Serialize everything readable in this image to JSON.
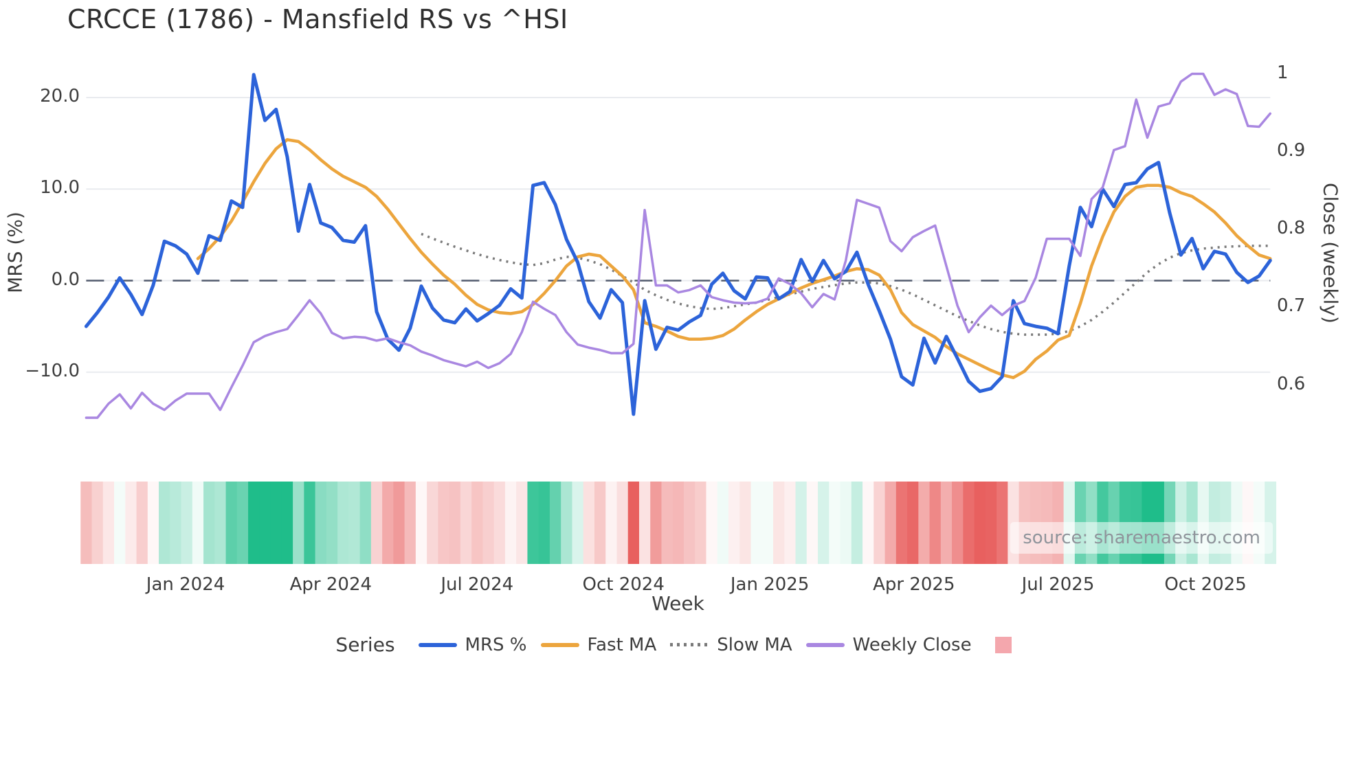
{
  "title": "CRCCE (1786) - Mansfield RS vs ^HSI",
  "source_note": "source: sharemaestro.com",
  "colors": {
    "mrs": "#2c63d9",
    "fast_ma": "#eca53d",
    "slow_ma": "#7a7a7a",
    "weekly_close": "#a987e1",
    "zero_line": "#525b6e",
    "gridline": "#e9ebef",
    "heat_positive": "#1fbd8a",
    "heat_negative": "#e8605f",
    "legend_square": "#f4a7ad",
    "tick_text": "#3d3d3d",
    "title_text": "#2e2e2e",
    "source_text": "#8f949b"
  },
  "axes": {
    "left": {
      "title": "MRS (%)",
      "ticks": [
        {
          "label": "20.0",
          "value": 20
        },
        {
          "label": "10.0",
          "value": 10
        },
        {
          "label": "0.0",
          "value": 0
        },
        {
          "label": "−10.0",
          "value": -10
        }
      ]
    },
    "right": {
      "title": "Close (weekly)",
      "ticks": [
        {
          "label": "1",
          "value": 1.0
        },
        {
          "label": "0.9",
          "value": 0.9
        },
        {
          "label": "0.8",
          "value": 0.8
        },
        {
          "label": "0.7",
          "value": 0.7
        },
        {
          "label": "0.6",
          "value": 0.6
        }
      ]
    },
    "x": {
      "title": "Week",
      "ticks": [
        {
          "label": "Jan 2024",
          "week": 8.9
        },
        {
          "label": "Apr 2024",
          "week": 21.9
        },
        {
          "label": "Jul 2024",
          "week": 35.0
        },
        {
          "label": "Oct 2024",
          "week": 48.1
        },
        {
          "label": "Jan 2025",
          "week": 61.2
        },
        {
          "label": "Apr 2025",
          "week": 74.1
        },
        {
          "label": "Jul 2025",
          "week": 87.0
        },
        {
          "label": "Oct 2025",
          "week": 100.2
        }
      ]
    }
  },
  "legend": {
    "title": "Series",
    "items": [
      {
        "label": "MRS %",
        "swatch": "line",
        "color": "#2c63d9"
      },
      {
        "label": "Fast MA",
        "swatch": "line",
        "color": "#eca53d"
      },
      {
        "label": "Slow MA",
        "swatch": "dotted",
        "color": "#7a7a7a"
      },
      {
        "label": "Weekly Close",
        "swatch": "line",
        "color": "#a987e1"
      },
      {
        "label": "",
        "swatch": "square",
        "color": "#f4a7ad"
      }
    ]
  },
  "chart_data": {
    "type": "line",
    "x_unit": "weeks",
    "n_weeks": 107,
    "x_range_label": [
      "Nov 2023",
      "Nov 2025"
    ],
    "left_axis_range": [
      -15.5,
      23.5
    ],
    "right_axis_range": [
      0.55,
      1.0
    ],
    "grid": true,
    "legend_position": "bottom",
    "series": [
      {
        "name": "MRS %",
        "axis": "left",
        "style": "solid",
        "color": "#2c63d9",
        "width": 5,
        "values": [
          -5.0,
          -3.5,
          -1.8,
          0.3,
          -1.5,
          -3.7,
          -0.5,
          4.3,
          3.8,
          2.9,
          0.8,
          4.9,
          4.4,
          8.7,
          8.0,
          22.5,
          17.5,
          18.7,
          13.5,
          5.4,
          10.5,
          6.3,
          5.8,
          4.4,
          4.2,
          6.0,
          -3.4,
          -6.4,
          -7.6,
          -5.2,
          -0.6,
          -3.0,
          -4.3,
          -4.6,
          -3.1,
          -4.4,
          -3.6,
          -2.7,
          -0.9,
          -1.9,
          10.4,
          10.7,
          8.3,
          4.5,
          2.0,
          -2.3,
          -4.1,
          -1.0,
          -2.4,
          -14.6,
          -2.2,
          -7.5,
          -5.1,
          -5.4,
          -4.5,
          -3.8,
          -0.4,
          0.8,
          -1.1,
          -2.0,
          0.4,
          0.3,
          -2.0,
          -1.2,
          2.3,
          -0.1,
          2.2,
          0.2,
          1.0,
          3.1,
          -0.4,
          -3.3,
          -6.4,
          -10.5,
          -11.4,
          -6.3,
          -9.0,
          -6.1,
          -8.5,
          -11.0,
          -12.1,
          -11.8,
          -10.5,
          -2.2,
          -4.7,
          -5.0,
          -5.2,
          -5.8,
          1.6,
          8.0,
          5.9,
          10.0,
          8.1,
          10.5,
          10.7,
          12.2,
          12.9,
          7.4,
          2.8,
          4.6,
          1.3,
          3.2,
          2.9,
          0.9,
          -0.2,
          0.5,
          2.2
        ]
      },
      {
        "name": "Fast MA",
        "axis": "left",
        "style": "solid",
        "color": "#eca53d",
        "width": 4.5,
        "values": [
          null,
          null,
          null,
          null,
          null,
          null,
          null,
          null,
          null,
          null,
          2.4,
          3.5,
          4.8,
          6.5,
          8.6,
          10.8,
          12.8,
          14.4,
          15.4,
          15.2,
          14.3,
          13.2,
          12.2,
          11.4,
          10.8,
          10.2,
          9.2,
          7.8,
          6.2,
          4.6,
          3.1,
          1.8,
          0.6,
          -0.4,
          -1.6,
          -2.6,
          -3.2,
          -3.5,
          -3.6,
          -3.4,
          -2.6,
          -1.4,
          0.0,
          1.6,
          2.6,
          2.9,
          2.7,
          1.6,
          0.5,
          -1.0,
          -4.6,
          -5.0,
          -5.5,
          -6.1,
          -6.4,
          -6.4,
          -6.3,
          -6.0,
          -5.3,
          -4.3,
          -3.4,
          -2.6,
          -2.0,
          -1.4,
          -0.8,
          -0.3,
          0.1,
          0.5,
          1.0,
          1.3,
          1.2,
          0.6,
          -1.0,
          -3.5,
          -4.8,
          -5.5,
          -6.2,
          -7.2,
          -8.0,
          -8.6,
          -9.2,
          -9.8,
          -10.3,
          -10.6,
          -9.9,
          -8.6,
          -7.7,
          -6.5,
          -6.0,
          -2.5,
          1.6,
          4.8,
          7.5,
          9.2,
          10.2,
          10.4,
          10.4,
          10.2,
          9.6,
          9.2,
          8.4,
          7.5,
          6.3,
          4.9,
          3.8,
          2.8,
          2.4
        ]
      },
      {
        "name": "Slow MA",
        "axis": "left",
        "style": "dotted",
        "color": "#7a7a7a",
        "width": 3.5,
        "values": [
          null,
          null,
          null,
          null,
          null,
          null,
          null,
          null,
          null,
          null,
          null,
          null,
          null,
          null,
          null,
          null,
          null,
          null,
          null,
          null,
          null,
          null,
          null,
          null,
          null,
          null,
          null,
          null,
          null,
          null,
          5.1,
          4.6,
          4.15,
          3.7,
          3.3,
          2.9,
          2.55,
          2.25,
          2.0,
          1.8,
          1.7,
          1.9,
          2.3,
          2.6,
          2.5,
          2.2,
          1.8,
          1.2,
          0.5,
          -0.2,
          -1.0,
          -1.6,
          -2.1,
          -2.5,
          -2.8,
          -3.0,
          -3.1,
          -3.0,
          -2.8,
          -2.6,
          -2.4,
          -2.1,
          -1.8,
          -1.5,
          -1.2,
          -0.9,
          -0.7,
          -0.5,
          -0.3,
          -0.2,
          -0.2,
          -0.3,
          -0.6,
          -1.0,
          -1.5,
          -2.1,
          -2.7,
          -3.3,
          -3.9,
          -4.4,
          -4.9,
          -5.3,
          -5.6,
          -5.8,
          -5.9,
          -5.9,
          -5.9,
          -5.8,
          -5.5,
          -5.0,
          -4.3,
          -3.4,
          -2.4,
          -1.3,
          -0.2,
          0.9,
          1.8,
          2.5,
          3.0,
          3.3,
          3.5,
          3.6,
          3.7,
          3.75,
          3.8,
          3.8,
          3.8
        ]
      },
      {
        "name": "Weekly Close",
        "axis": "right",
        "style": "solid",
        "color": "#a987e1",
        "width": 3.5,
        "values": [
          0.558,
          0.558,
          0.576,
          0.588,
          0.57,
          0.59,
          0.576,
          0.568,
          0.58,
          0.589,
          0.589,
          0.589,
          0.568,
          0.597,
          0.625,
          0.655,
          0.663,
          0.668,
          0.672,
          0.69,
          0.709,
          0.692,
          0.667,
          0.66,
          0.662,
          0.661,
          0.657,
          0.66,
          0.655,
          0.651,
          0.643,
          0.638,
          0.632,
          0.628,
          0.624,
          0.63,
          0.622,
          0.628,
          0.64,
          0.668,
          0.707,
          0.698,
          0.69,
          0.668,
          0.652,
          0.648,
          0.645,
          0.641,
          0.641,
          0.653,
          0.825,
          0.728,
          0.728,
          0.719,
          0.722,
          0.728,
          0.713,
          0.709,
          0.706,
          0.705,
          0.706,
          0.711,
          0.737,
          0.73,
          0.718,
          0.7,
          0.717,
          0.71,
          0.76,
          0.838,
          0.833,
          0.828,
          0.785,
          0.772,
          0.79,
          0.798,
          0.805,
          0.753,
          0.702,
          0.668,
          0.687,
          0.702,
          0.69,
          0.702,
          0.708,
          0.738,
          0.788,
          0.788,
          0.788,
          0.766,
          0.839,
          0.854,
          0.902,
          0.907,
          0.967,
          0.918,
          0.958,
          0.962,
          0.99,
          1.0,
          1.0,
          0.973,
          0.98,
          0.974,
          0.933,
          0.932,
          0.949
        ]
      }
    ],
    "heatmap_strip": {
      "description": "weekly cells colored by MRS % value: green positive, red negative, intensity by magnitude",
      "source_series": "MRS %",
      "positive_color": "#1fbd8a",
      "negative_color": "#e8605f",
      "saturation_abs_value": 12
    },
    "zero_line": {
      "axis": "left",
      "value": 0,
      "style": "dashed"
    }
  }
}
